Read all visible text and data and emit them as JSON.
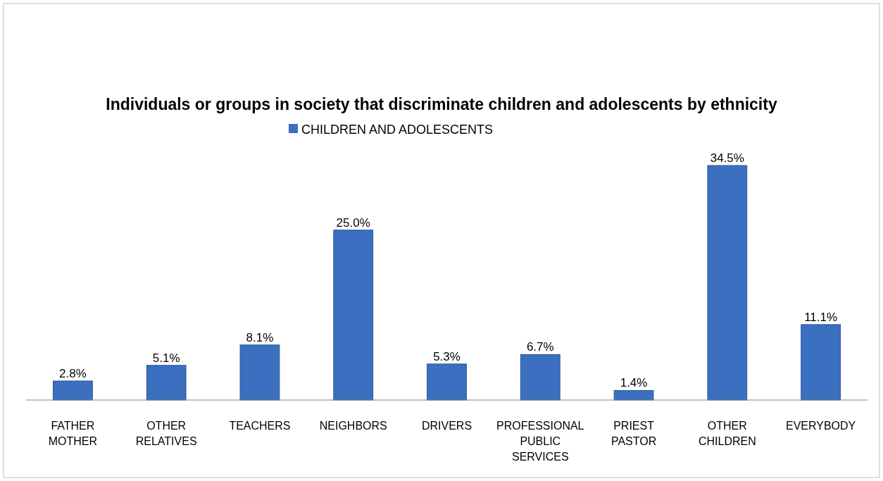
{
  "chart_data": {
    "type": "bar",
    "title": "Individuals or groups in society that discriminate children and adolescents by ethnicity",
    "categories": [
      "FATHER MOTHER",
      "OTHER RELATIVES",
      "TEACHERS",
      "NEIGHBORS",
      "DRIVERS",
      "PROFESSIONAL PUBLIC SERVICES",
      "PRIEST PASTOR",
      "OTHER CHILDREN",
      "EVERYBODY"
    ],
    "series": [
      {
        "name": "CHILDREN AND ADOLESCENTS",
        "color": "#3b70c0",
        "values": [
          2.8,
          5.1,
          8.1,
          25.0,
          5.3,
          6.7,
          1.4,
          34.5,
          11.1
        ],
        "value_labels": [
          "2.8%",
          "5.1%",
          "8.1%",
          "25.0%",
          "5.3%",
          "6.7%",
          "1.4%",
          "34.5%",
          "11.1%"
        ]
      }
    ],
    "legend": "top"
  }
}
